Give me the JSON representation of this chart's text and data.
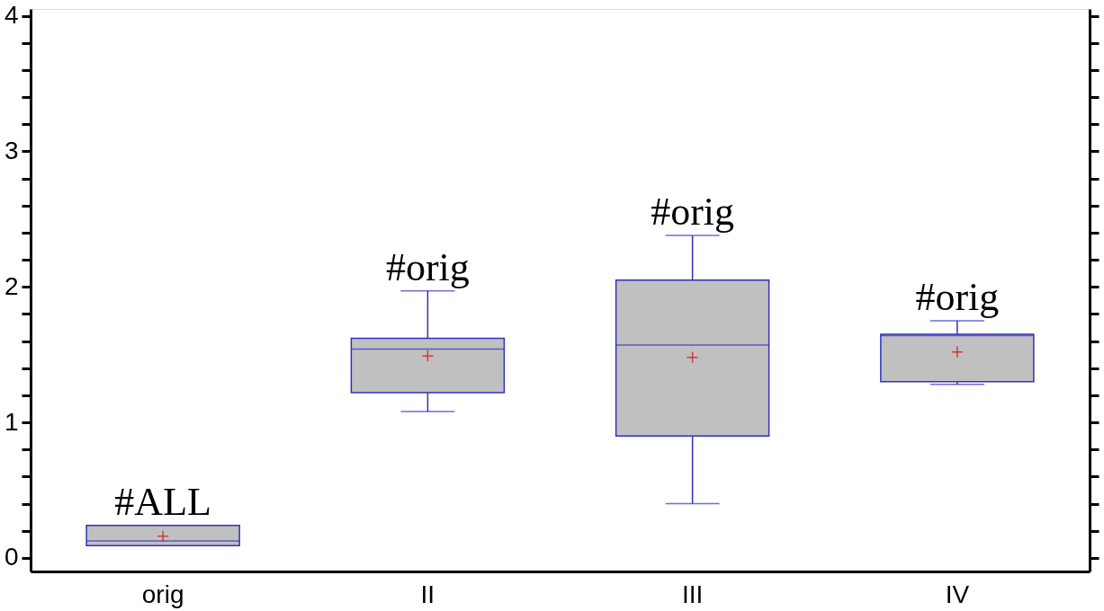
{
  "chart_data": {
    "type": "box",
    "categories": [
      "orig",
      "II",
      "III",
      "IV"
    ],
    "series": [
      {
        "color": "#c0c0c0",
        "boxes": [
          {
            "low": 0.09,
            "q1": 0.09,
            "median": 0.125,
            "q3": 0.24,
            "high": 0.24,
            "mean": 0.16
          },
          {
            "low": 1.08,
            "q1": 1.22,
            "median": 1.54,
            "q3": 1.62,
            "high": 1.97,
            "mean": 1.49
          },
          {
            "low": 0.4,
            "q1": 0.9,
            "median": 1.57,
            "q3": 2.05,
            "high": 2.38,
            "mean": 1.48
          },
          {
            "low": 1.28,
            "q1": 1.3,
            "median": 1.64,
            "q3": 1.65,
            "high": 1.75,
            "mean": 1.52
          }
        ]
      }
    ],
    "marker": "cross",
    "ylim": [
      -0.1,
      4.05
    ],
    "yticks": [
      0,
      {
        "value": 0.2,
        "label": null
      },
      {
        "value": 0.4,
        "label": null
      },
      {
        "value": 0.6,
        "label": null
      },
      {
        "value": 0.8,
        "label": null
      },
      1,
      {
        "value": 1.2,
        "label": null
      },
      {
        "value": 1.4,
        "label": null
      },
      {
        "value": 1.6,
        "label": null
      },
      {
        "value": 1.8,
        "label": null
      },
      2,
      {
        "value": 2.2,
        "label": null
      },
      {
        "value": 2.4,
        "label": null
      },
      {
        "value": 2.6,
        "label": null
      },
      {
        "value": 2.8,
        "label": null
      },
      3,
      {
        "value": 3.2,
        "label": null
      },
      {
        "value": 3.4,
        "label": null
      },
      {
        "value": 3.6,
        "label": null
      },
      {
        "value": 3.8,
        "label": null
      },
      4
    ],
    "annotations": [
      "#ALL",
      "#orig",
      "#orig",
      "#orig"
    ]
  }
}
